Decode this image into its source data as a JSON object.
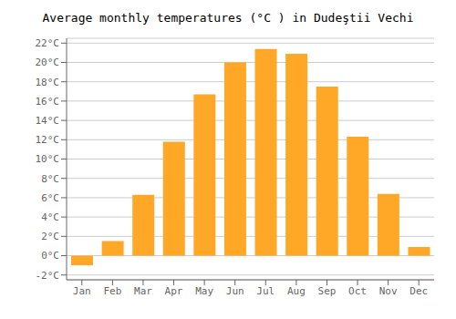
{
  "chart_data": {
    "type": "bar",
    "title": "Average monthly temperatures (°C ) in Dudeştii Vechi",
    "categories": [
      "Jan",
      "Feb",
      "Mar",
      "Apr",
      "May",
      "Jun",
      "Jul",
      "Aug",
      "Sep",
      "Oct",
      "Nov",
      "Dec"
    ],
    "values": [
      -1.0,
      1.5,
      6.3,
      11.8,
      16.7,
      20.0,
      21.4,
      20.9,
      17.5,
      12.3,
      6.4,
      0.9
    ],
    "color": "#FFA726",
    "ylim": [
      -2.5,
      22.5
    ],
    "yticks": [
      {
        "value": -2,
        "label": "-2°C"
      },
      {
        "value": 0,
        "label": "0°C"
      },
      {
        "value": 2,
        "label": "2°C"
      },
      {
        "value": 4,
        "label": "4°C"
      },
      {
        "value": 6,
        "label": "6°C"
      },
      {
        "value": 8,
        "label": "8°C"
      },
      {
        "value": 10,
        "label": "10°C"
      },
      {
        "value": 12,
        "label": "12°C"
      },
      {
        "value": 14,
        "label": "14°C"
      },
      {
        "value": 16,
        "label": "16°C"
      },
      {
        "value": 18,
        "label": "18°C"
      },
      {
        "value": 20,
        "label": "20°C"
      },
      {
        "value": 22,
        "label": "22°C"
      }
    ],
    "grid": true
  }
}
